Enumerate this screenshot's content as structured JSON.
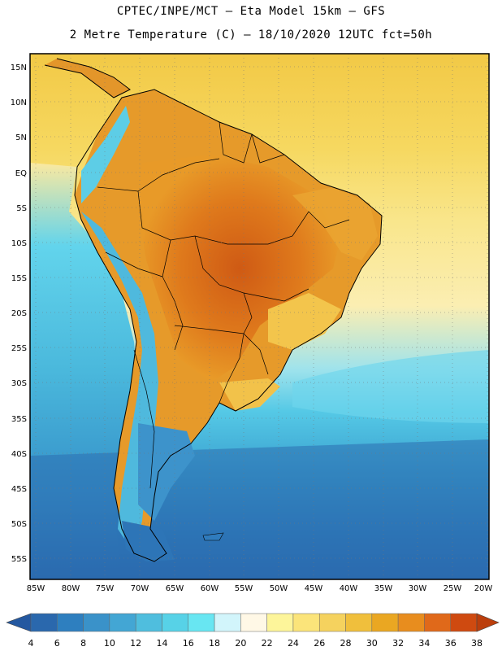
{
  "header": {
    "line1": "CPTEC/INPE/MCT –  Eta Model 15km – GFS",
    "line2": "2 Metre Temperature (C) – 18/10/2020 12UTC fct=50h"
  },
  "map": {
    "lat_labels": [
      "15N",
      "10N",
      "5N",
      "EQ",
      "5S",
      "10S",
      "15S",
      "20S",
      "25S",
      "30S",
      "35S",
      "40S",
      "45S",
      "50S",
      "55S"
    ],
    "lon_labels": [
      "85W",
      "80W",
      "75W",
      "70W",
      "65W",
      "60W",
      "55W",
      "50W",
      "45W",
      "40W",
      "35W",
      "30W",
      "25W",
      "20W"
    ],
    "ocean_colors": {
      "north_atlantic": "#f3cf4f",
      "tropical_atlantic": "#f8e27a",
      "subtropical": "#fbeea8",
      "cool_pacific": "#5fd8ee",
      "south_ocean": "#3c9fce",
      "far_south": "#2a6fb3"
    }
  },
  "colorbar": {
    "labels": [
      "4",
      "6",
      "8",
      "10",
      "12",
      "14",
      "16",
      "18",
      "20",
      "22",
      "24",
      "26",
      "28",
      "30",
      "32",
      "34",
      "36",
      "38"
    ],
    "colors": [
      "#2a68ad",
      "#2e7fbf",
      "#3a92c9",
      "#43a6d4",
      "#4fbede",
      "#57d2e7",
      "#68e6f2",
      "#d2f5fb",
      "#fff8e6",
      "#fdf59a",
      "#fbe47a",
      "#f5d25e",
      "#f0bf3c",
      "#eaa722",
      "#e88d1e",
      "#e0691a",
      "#cf4a10"
    ],
    "left_end_color": "#2458a0",
    "right_end_color": "#bb3e0c"
  }
}
